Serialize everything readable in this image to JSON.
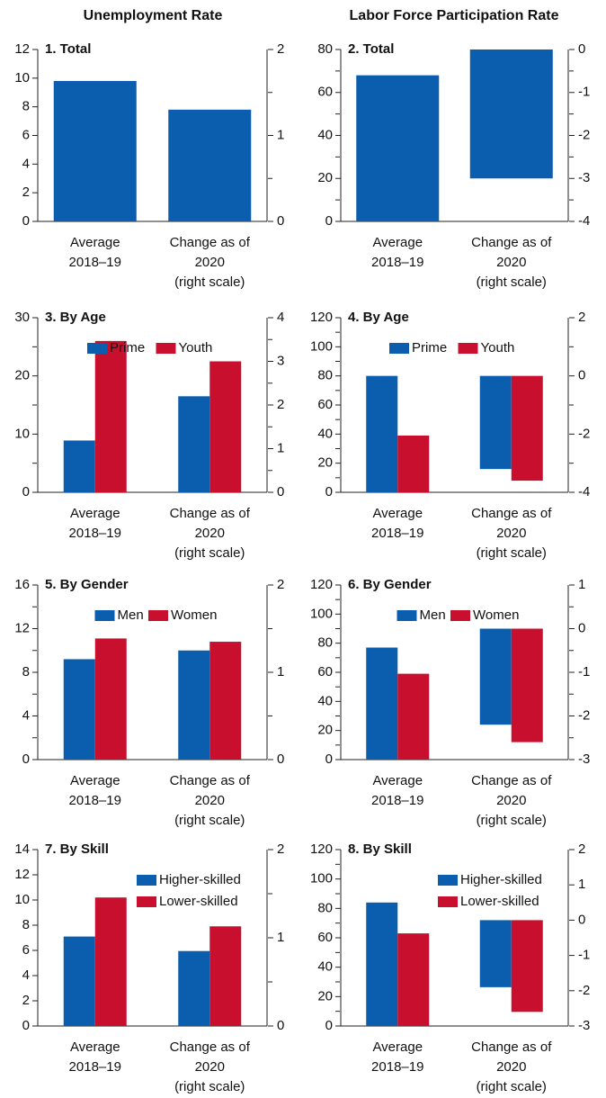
{
  "column_titles": [
    "Unemployment Rate",
    "Labor Force Participation Rate"
  ],
  "chart_data": [
    {
      "type": "bar",
      "title": "1. Total",
      "categories": [
        [
          "Average",
          "2018–19"
        ],
        [
          "Change as of",
          "2020",
          "(right scale)"
        ]
      ],
      "category_axis": [
        "y",
        "y2"
      ],
      "values": [
        9.8,
        1.3
      ],
      "color": "#0b5eae",
      "ylim": [
        0,
        12
      ],
      "yticks": [
        0,
        2,
        4,
        6,
        8,
        10,
        12
      ],
      "yminor": [],
      "y2lim": [
        0,
        2
      ],
      "y2ticks": [
        0,
        1,
        2
      ],
      "y2minor": [
        0.5,
        1.5
      ]
    },
    {
      "type": "bar",
      "title": "2. Total",
      "categories": [
        [
          "Average",
          "2018–19"
        ],
        [
          "Change as of",
          "2020",
          "(right scale)"
        ]
      ],
      "category_axis": [
        "y",
        "y2"
      ],
      "values": [
        68,
        -3.0
      ],
      "color": "#0b5eae",
      "ylim": [
        0,
        80
      ],
      "yticks": [
        0,
        20,
        40,
        60,
        80
      ],
      "yminor": [
        10,
        30,
        50,
        70
      ],
      "y2lim": [
        -4,
        0
      ],
      "y2ticks": [
        -4,
        -3,
        -2,
        -1,
        0
      ],
      "y2minor": [
        -3.5,
        -2.5,
        -1.5,
        -0.5
      ]
    },
    {
      "type": "grouped_bar",
      "title": "3. By Age",
      "legend": "top",
      "categories": [
        [
          "Average",
          "2018–19"
        ],
        [
          "Change as of",
          "2020",
          "(right scale)"
        ]
      ],
      "category_axis": [
        "y",
        "y2"
      ],
      "series": [
        {
          "name": "Prime",
          "color": "#0b5eae",
          "values": [
            8.9,
            2.2
          ]
        },
        {
          "name": "Youth",
          "color": "#c8102e",
          "values": [
            26,
            3.0
          ]
        }
      ],
      "ylim": [
        0,
        30
      ],
      "yticks": [
        0,
        10,
        20,
        30
      ],
      "yminor": [
        5,
        15,
        25
      ],
      "y2lim": [
        0,
        4
      ],
      "y2ticks": [
        0,
        1,
        2,
        3,
        4
      ],
      "y2minor": [
        0.5,
        1.5,
        2.5,
        3.5
      ]
    },
    {
      "type": "grouped_bar",
      "title": "4. By Age",
      "legend": "top",
      "categories": [
        [
          "Average",
          "2018–19"
        ],
        [
          "Change as of",
          "2020",
          "(right scale)"
        ]
      ],
      "category_axis": [
        "y",
        "y2"
      ],
      "series": [
        {
          "name": "Prime",
          "color": "#0b5eae",
          "values": [
            80,
            -3.2
          ]
        },
        {
          "name": "Youth",
          "color": "#c8102e",
          "values": [
            39,
            -3.6
          ]
        }
      ],
      "ylim": [
        0,
        120
      ],
      "yticks": [
        0,
        20,
        40,
        60,
        80,
        100,
        120
      ],
      "yminor": [
        10,
        30,
        50,
        70,
        90,
        110
      ],
      "y2lim": [
        -4,
        2
      ],
      "y2ticks": [
        -4,
        -2,
        0,
        2
      ],
      "y2minor": [
        -3,
        -1,
        1
      ]
    },
    {
      "type": "grouped_bar",
      "title": "5. By Gender",
      "legend": "top",
      "categories": [
        [
          "Average",
          "2018–19"
        ],
        [
          "Change as of",
          "2020",
          "(right scale)"
        ]
      ],
      "category_axis": [
        "y",
        "y2"
      ],
      "series": [
        {
          "name": "Men",
          "color": "#0b5eae",
          "values": [
            9.2,
            1.25
          ]
        },
        {
          "name": "Women",
          "color": "#c8102e",
          "values": [
            11.1,
            1.35
          ]
        }
      ],
      "ylim": [
        0,
        16
      ],
      "yticks": [
        0,
        4,
        8,
        12,
        16
      ],
      "yminor": [
        2,
        6,
        10,
        14
      ],
      "y2lim": [
        0,
        2
      ],
      "y2ticks": [
        0,
        1,
        2
      ],
      "y2minor": [
        0.5,
        1.5
      ]
    },
    {
      "type": "grouped_bar",
      "title": "6. By Gender",
      "legend": "top",
      "categories": [
        [
          "Average",
          "2018–19"
        ],
        [
          "Change as of",
          "2020",
          "(right scale)"
        ]
      ],
      "category_axis": [
        "y",
        "y2"
      ],
      "series": [
        {
          "name": "Men",
          "color": "#0b5eae",
          "values": [
            77,
            -2.2
          ]
        },
        {
          "name": "Women",
          "color": "#c8102e",
          "values": [
            59,
            -2.6
          ]
        }
      ],
      "ylim": [
        0,
        120
      ],
      "yticks": [
        0,
        20,
        40,
        60,
        80,
        100,
        120
      ],
      "yminor": [
        10,
        30,
        50,
        70,
        90,
        110
      ],
      "y2lim": [
        -3,
        1
      ],
      "y2ticks": [
        -3,
        -2,
        -1,
        0,
        1
      ],
      "y2minor": [
        -2.5,
        -1.5,
        -0.5,
        0.5
      ]
    },
    {
      "type": "grouped_bar",
      "title": "7. By Skill",
      "legend": "right",
      "categories": [
        [
          "Average",
          "2018–19"
        ],
        [
          "Change as of",
          "2020",
          "(right scale)"
        ]
      ],
      "category_axis": [
        "y",
        "y2"
      ],
      "series": [
        {
          "name": "Higher-skilled",
          "color": "#0b5eae",
          "values": [
            7.1,
            0.85
          ]
        },
        {
          "name": "Lower-skilled",
          "color": "#c8102e",
          "values": [
            10.2,
            1.13
          ]
        }
      ],
      "ylim": [
        0,
        14
      ],
      "yticks": [
        0,
        2,
        4,
        6,
        8,
        10,
        12,
        14
      ],
      "yminor": [],
      "y2lim": [
        0,
        2
      ],
      "y2ticks": [
        0,
        1,
        2
      ],
      "y2minor": [
        0.5,
        1.5
      ]
    },
    {
      "type": "grouped_bar",
      "title": "8. By Skill",
      "legend": "right",
      "categories": [
        [
          "Average",
          "2018–19"
        ],
        [
          "Change as of",
          "2020",
          "(right scale)"
        ]
      ],
      "category_axis": [
        "y",
        "y2"
      ],
      "series": [
        {
          "name": "Higher-skilled",
          "color": "#0b5eae",
          "values": [
            84,
            -1.9
          ]
        },
        {
          "name": "Lower-skilled",
          "color": "#c8102e",
          "values": [
            63,
            -2.6
          ]
        }
      ],
      "ylim": [
        0,
        120
      ],
      "yticks": [
        0,
        20,
        40,
        60,
        80,
        100,
        120
      ],
      "yminor": [
        10,
        30,
        50,
        70,
        90,
        110
      ],
      "y2lim": [
        -3,
        2
      ],
      "y2ticks": [
        -3,
        -2,
        -1,
        0,
        1,
        2
      ],
      "y2minor": []
    }
  ]
}
